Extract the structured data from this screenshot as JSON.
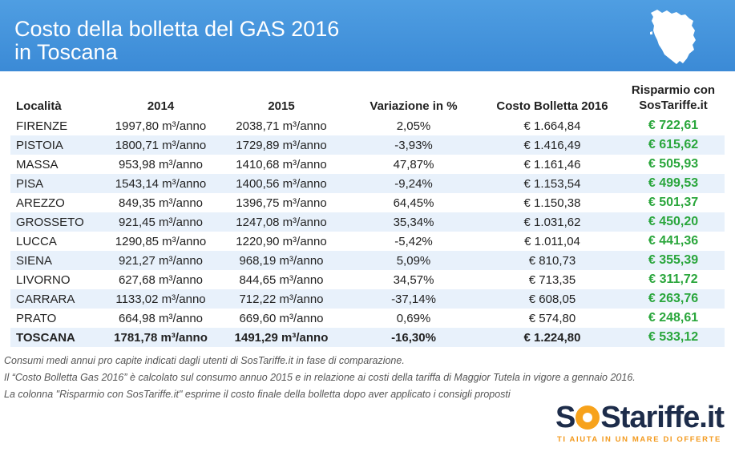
{
  "header": {
    "title_line1": "Costo della bolletta del GAS 2016",
    "title_line2": "in Toscana",
    "map_icon": "tuscany-map-icon"
  },
  "table": {
    "columns": [
      "Località",
      "2014",
      "2015",
      "Variazione in %",
      "Costo Bolletta 2016",
      "Risparmio con",
      "SosTariffe.it"
    ],
    "rows": [
      {
        "loc": "FIRENZE",
        "y2014": "1997,80 m³/anno",
        "y2015": "2038,71 m³/anno",
        "var": "2,05%",
        "cost": "€ 1.664,84",
        "save": "€ 722,61"
      },
      {
        "loc": "PISTOIA",
        "y2014": "1800,71 m³/anno",
        "y2015": "1729,89 m³/anno",
        "var": "-3,93%",
        "cost": "€ 1.416,49",
        "save": "€ 615,62"
      },
      {
        "loc": "MASSA",
        "y2014": "953,98 m³/anno",
        "y2015": "1410,68 m³/anno",
        "var": "47,87%",
        "cost": "€ 1.161,46",
        "save": "€ 505,93"
      },
      {
        "loc": "PISA",
        "y2014": "1543,14 m³/anno",
        "y2015": "1400,56 m³/anno",
        "var": "-9,24%",
        "cost": "€ 1.153,54",
        "save": "€ 499,53"
      },
      {
        "loc": "AREZZO",
        "y2014": "849,35 m³/anno",
        "y2015": "1396,75 m³/anno",
        "var": "64,45%",
        "cost": "€ 1.150,38",
        "save": "€ 501,37"
      },
      {
        "loc": "GROSSETO",
        "y2014": "921,45 m³/anno",
        "y2015": "1247,08 m³/anno",
        "var": "35,34%",
        "cost": "€ 1.031,62",
        "save": "€ 450,20"
      },
      {
        "loc": "LUCCA",
        "y2014": "1290,85 m³/anno",
        "y2015": "1220,90 m³/anno",
        "var": "-5,42%",
        "cost": "€ 1.011,04",
        "save": "€ 441,36"
      },
      {
        "loc": "SIENA",
        "y2014": "921,27 m³/anno",
        "y2015": "968,19 m³/anno",
        "var": "5,09%",
        "cost": "€ 810,73",
        "save": "€ 355,39"
      },
      {
        "loc": "LIVORNO",
        "y2014": "627,68 m³/anno",
        "y2015": "844,65 m³/anno",
        "var": "34,57%",
        "cost": "€ 713,35",
        "save": "€ 311,72"
      },
      {
        "loc": "CARRARA",
        "y2014": "1133,02 m³/anno",
        "y2015": "712,22 m³/anno",
        "var": "-37,14%",
        "cost": "€ 608,05",
        "save": "€ 263,76"
      },
      {
        "loc": "PRATO",
        "y2014": "664,98 m³/anno",
        "y2015": "669,60 m³/anno",
        "var": "0,69%",
        "cost": "€ 574,80",
        "save": "€ 248,61"
      },
      {
        "loc": "TOSCANA",
        "y2014": "1781,78 m³/anno",
        "y2015": "1491,29 m³/anno",
        "var": "-16,30%",
        "cost": "€ 1.224,80",
        "save": "€ 533,12"
      }
    ]
  },
  "notes": [
    "Consumi medi annui pro capite indicati dagli utenti di SosTariffe.it in fase di comparazione.",
    "Il “Costo Bolletta Gas 2016” è calcolato sul consumo annuo 2015 e in relazione ai costi della tariffa di Maggior Tutela in vigore a gennaio 2016.",
    "La colonna \"Risparmio con SosTariffe.it\" esprime il costo finale della bolletta dopo aver applicato i consigli proposti"
  ],
  "logo": {
    "s1": "S",
    "s2": "S",
    "rest": "tariffe.it",
    "tagline": "TI AIUTA IN UN MARE DI OFFERTE"
  },
  "colors": {
    "header_bg": "#3b8ad6",
    "row_alt": "#e8f1fb",
    "savings_green": "#2aa63c",
    "logo_orange": "#f7a21b",
    "logo_navy": "#1d2c4a"
  }
}
